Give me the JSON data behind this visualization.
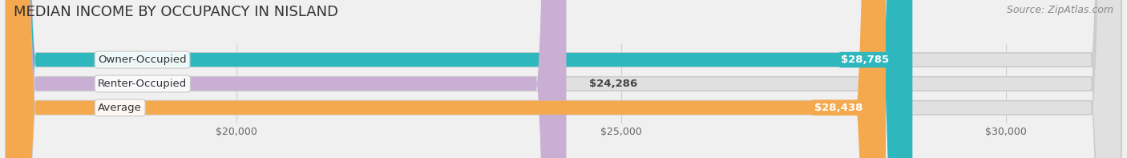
{
  "title": "MEDIAN INCOME BY OCCUPANCY IN NISLAND",
  "source": "Source: ZipAtlas.com",
  "categories": [
    "Owner-Occupied",
    "Renter-Occupied",
    "Average"
  ],
  "values": [
    28785,
    24286,
    28438
  ],
  "bar_colors": [
    "#2eb8be",
    "#c9afd4",
    "#f5a94e"
  ],
  "bar_labels": [
    "$28,785",
    "$24,286",
    "$28,438"
  ],
  "label_colors": [
    "#ffffff",
    "#555555",
    "#ffffff"
  ],
  "xmin": 17000,
  "xmax": 31500,
  "xticks": [
    20000,
    25000,
    30000
  ],
  "xtick_labels": [
    "$20,000",
    "$25,000",
    "$30,000"
  ],
  "background_color": "#f0f0f0",
  "bar_background_color": "#e0e0e0",
  "title_fontsize": 13,
  "source_fontsize": 9,
  "label_fontsize": 9.5,
  "tick_fontsize": 9,
  "bar_height": 0.58,
  "bar_label_inside_threshold": 26000
}
